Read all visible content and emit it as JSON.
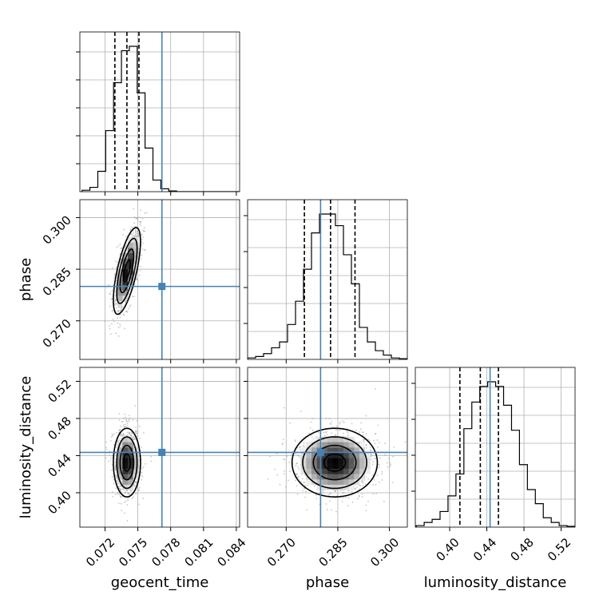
{
  "chart_data": {
    "type": "corner",
    "parameters": [
      "geocent_time",
      "phase",
      "luminosity_distance"
    ],
    "injection": {
      "geocent_time": 0.0772,
      "phase": 0.28,
      "luminosity_distance": 0.4435
    },
    "axis_labels": {
      "geocent_time": "geocent_time",
      "phase": "phase",
      "luminosity_distance": "luminosity_distance"
    },
    "ranges": {
      "geocent_time": [
        0.0697,
        0.0843
      ],
      "phase": [
        0.2588,
        0.3052
      ],
      "luminosity_distance": [
        0.363,
        0.535
      ]
    },
    "ticks": {
      "geocent_time": [
        "0.072",
        "0.075",
        "0.078",
        "0.081",
        "0.084"
      ],
      "phase": [
        "0.270",
        "0.285",
        "0.300"
      ],
      "luminosity_distance": [
        "0.40",
        "0.44",
        "0.48",
        "0.52"
      ]
    },
    "histograms": {
      "geocent_time": {
        "counts": [
          0.01,
          0.03,
          0.14,
          0.42,
          0.75,
          0.97,
          1.0,
          0.68,
          0.3,
          0.08,
          0.02,
          0.005,
          0,
          0,
          0,
          0,
          0,
          0,
          0,
          0
        ],
        "quantiles": [
          0.0729,
          0.074,
          0.0751
        ]
      },
      "phase": {
        "counts": [
          0.01,
          0.02,
          0.04,
          0.08,
          0.12,
          0.24,
          0.4,
          0.62,
          0.87,
          1.0,
          1.0,
          0.92,
          0.72,
          0.52,
          0.22,
          0.12,
          0.06,
          0.03,
          0.01,
          0.005
        ],
        "quantiles": [
          0.2753,
          0.2829,
          0.29
        ]
      },
      "luminosity_distance": {
        "counts": [
          0.01,
          0.03,
          0.05,
          0.1,
          0.2,
          0.34,
          0.63,
          0.8,
          0.9,
          0.93,
          0.9,
          0.78,
          0.62,
          0.4,
          0.24,
          0.15,
          0.06,
          0.03,
          0.01,
          0.005
        ],
        "quantiles": [
          0.411,
          0.433,
          0.4525
        ]
      }
    },
    "scatter_pairs": [
      {
        "x": "geocent_time",
        "y": "phase",
        "center": [
          0.074,
          0.2845
        ],
        "sigma": [
          0.00062,
          0.0063
        ],
        "corr": 0.68
      },
      {
        "x": "geocent_time",
        "y": "luminosity_distance",
        "center": [
          0.074,
          0.4325
        ],
        "sigma": [
          0.00062,
          0.0185
        ],
        "corr": 0.0
      },
      {
        "x": "phase",
        "y": "luminosity_distance",
        "center": [
          0.2841,
          0.4325
        ],
        "sigma": [
          0.0062,
          0.0185
        ],
        "corr": 0.0
      }
    ],
    "colors": {
      "truth": "#4682b4",
      "hist": "#000000",
      "grid": "#b0b0b0",
      "points": "#9a9a9a"
    },
    "grid": true
  }
}
